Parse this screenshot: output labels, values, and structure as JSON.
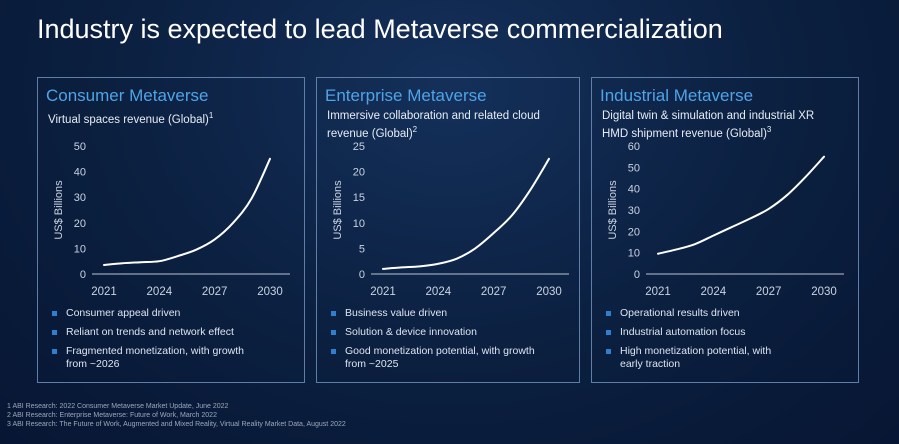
{
  "title": "Industry is expected to lead Metaverse commercialization",
  "panels": [
    {
      "name": "Consumer Metaverse",
      "subtitle": "Virtual spaces revenue (Global)",
      "footnote_ref": "1",
      "bullets": [
        "Consumer appeal driven",
        "Reliant on trends and network effect",
        "Fragmented monetization, with growth from ~2026"
      ]
    },
    {
      "name": "Enterprise Metaverse",
      "subtitle": "Immersive collaboration and related cloud revenue (Global)",
      "footnote_ref": "2",
      "bullets": [
        "Business value driven",
        "Solution & device innovation",
        "Good monetization potential, with growth from ~2025"
      ]
    },
    {
      "name": "Industrial Metaverse",
      "subtitle": "Digital twin & simulation and industrial XR HMD shipment revenue (Global)",
      "footnote_ref": "3",
      "bullets": [
        "Operational results driven",
        "Industrial automation focus",
        "High monetization potential, with early traction"
      ]
    }
  ],
  "footnotes": [
    "1 ABI Research: 2022 Consumer Metaverse Market Update, June 2022",
    "2 ABI Research: Enterprise Metaverse: Future of Work, March 2022",
    "3 ABI Research: The Future of Work, Augmented and Mixed Reality, Virtual Reality Market Data, August 2022"
  ],
  "colors": {
    "accent": "#4fa3e6",
    "bullet": "#2f7fd0",
    "line": "#ffffff"
  },
  "chart_data": [
    {
      "type": "line",
      "title": "Consumer Metaverse",
      "ylabel": "US$ Billions",
      "xlabel": "",
      "x": [
        2021,
        2022,
        2023,
        2024,
        2025,
        2026,
        2027,
        2028,
        2029,
        2030
      ],
      "values": [
        3.5,
        4.2,
        4.6,
        5,
        7,
        9.5,
        13.5,
        20,
        29.5,
        45
      ],
      "ylim": [
        0,
        50
      ],
      "yticks": [
        0,
        10,
        20,
        30,
        40,
        50
      ],
      "xticks": [
        2021,
        2024,
        2027,
        2030
      ],
      "grid": false
    },
    {
      "type": "line",
      "title": "Enterprise Metaverse",
      "ylabel": "US$ Billions",
      "xlabel": "",
      "x": [
        2021,
        2022,
        2023,
        2024,
        2025,
        2026,
        2027,
        2028,
        2029,
        2030
      ],
      "values": [
        1,
        1.3,
        1.5,
        2,
        3,
        5,
        8,
        11.5,
        16.5,
        22.5
      ],
      "ylim": [
        0,
        25
      ],
      "yticks": [
        0,
        5,
        10,
        15,
        20,
        25
      ],
      "xticks": [
        2021,
        2024,
        2027,
        2030
      ],
      "grid": false
    },
    {
      "type": "line",
      "title": "Industrial Metaverse",
      "ylabel": "US$ Billions",
      "xlabel": "",
      "x": [
        2021,
        2022,
        2023,
        2024,
        2025,
        2026,
        2027,
        2028,
        2029,
        2030
      ],
      "values": [
        9.5,
        11.5,
        14,
        18,
        22,
        26,
        30.5,
        37,
        45.5,
        55
      ],
      "ylim": [
        0,
        60
      ],
      "yticks": [
        0,
        10,
        20,
        30,
        40,
        50,
        60
      ],
      "xticks": [
        2021,
        2024,
        2027,
        2030
      ],
      "grid": false
    }
  ]
}
